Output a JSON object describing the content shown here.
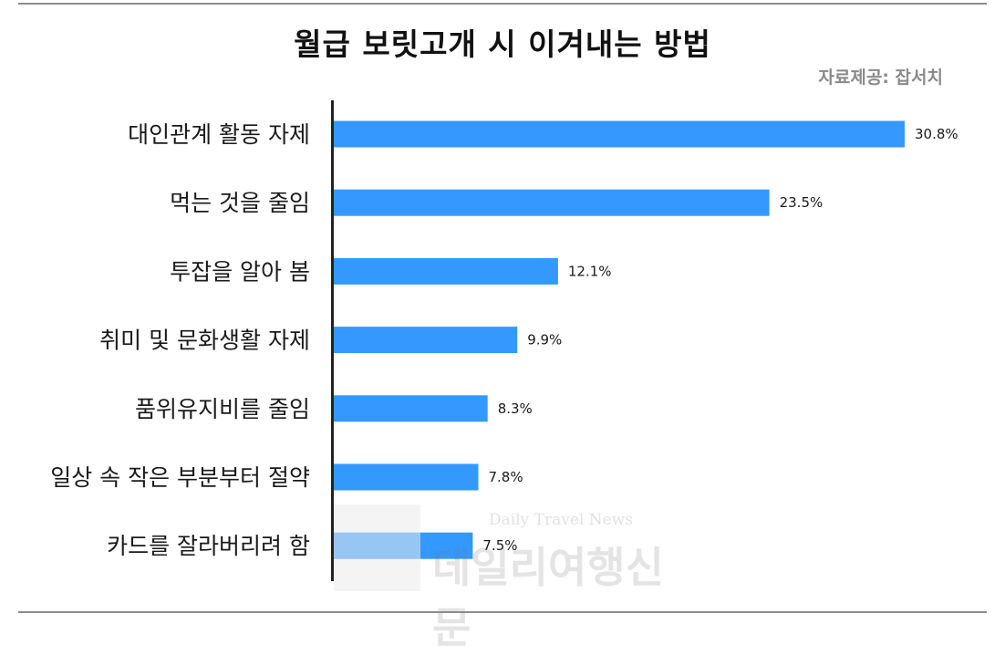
{
  "title": "월급 보릿고개 시 이겨내는 방법",
  "source": "자료제공: 잡서치",
  "watermark": {
    "text_en": "Daily Travel News",
    "text_ko": "데일리여행신문"
  },
  "colors": {
    "bar": "#3399ff",
    "axis": "#222222",
    "rule": "#8c8c8c"
  },
  "chart_data": {
    "type": "bar",
    "orientation": "horizontal",
    "title": "월급 보릿고개 시 이겨내는 방법",
    "categories": [
      "대인관계 활동 자제",
      "먹는 것을 줄임",
      "투잡을 알아 봄",
      "취미 및 문화생활 자제",
      "품위유지비를 줄임",
      "일상 속 작은 부분부터 절약",
      "카드를 잘라버리려 함"
    ],
    "values": [
      30.8,
      23.5,
      12.1,
      9.9,
      8.3,
      7.8,
      7.5
    ],
    "value_labels": [
      "30.8%",
      "23.5%",
      "12.1%",
      "9.9%",
      "8.3%",
      "7.8%",
      "7.5%"
    ],
    "unit": "%",
    "xlim": [
      0,
      32
    ],
    "grid": false,
    "legend": "none"
  }
}
